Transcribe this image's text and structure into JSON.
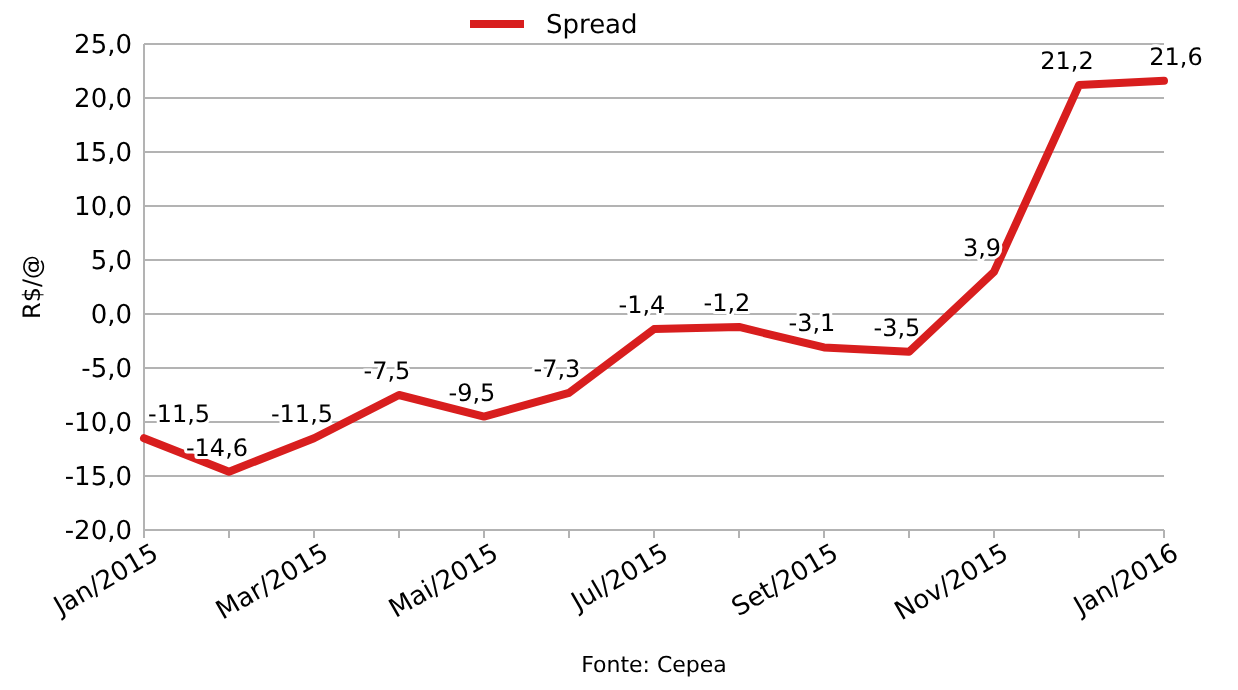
{
  "chart_data": {
    "type": "line",
    "ylabel": "R$/@",
    "categories": [
      "Jan/2015",
      null,
      "Mar/2015",
      null,
      "Mai/2015",
      null,
      "Jul/2015",
      null,
      "Set/2015",
      null,
      "Nov/2015",
      null,
      "Jan/2016"
    ],
    "series": [
      {
        "name": "Spread",
        "color": "#d81e1e",
        "values": [
          -11.5,
          -14.6,
          -11.5,
          -7.5,
          -9.5,
          -7.3,
          -1.4,
          -1.2,
          -3.1,
          -3.5,
          3.9,
          21.2,
          21.6
        ],
        "value_labels": [
          "-11,5",
          "-14,6",
          "-11,5",
          "-7,5",
          "-9,5",
          "-7,3",
          "-1,4",
          "-1,2",
          "-3,1",
          "-3,5",
          "3,9",
          "21,2",
          "21,6"
        ]
      }
    ],
    "ylim": [
      -20,
      25
    ],
    "yticks": [
      {
        "value": -20,
        "label": "-20,0"
      },
      {
        "value": -15,
        "label": "-15,0"
      },
      {
        "value": -10,
        "label": "-10,0"
      },
      {
        "value": -5,
        "label": "-5,0"
      },
      {
        "value": 0,
        "label": "0,0"
      },
      {
        "value": 5,
        "label": "5,0"
      },
      {
        "value": 10,
        "label": "10,0"
      },
      {
        "value": 15,
        "label": "15,0"
      },
      {
        "value": 20,
        "label": "20,0"
      },
      {
        "value": 25,
        "label": "25,0"
      }
    ],
    "grid": "y",
    "legend": "top",
    "marker": "none",
    "line_style": "solid",
    "annotations": [
      "Fonte: Cepea"
    ]
  }
}
